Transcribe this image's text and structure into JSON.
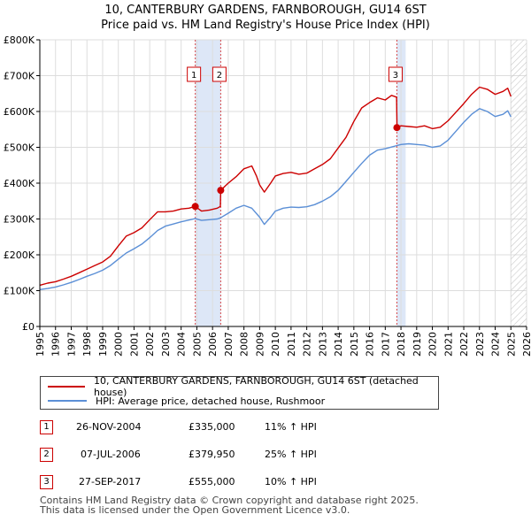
{
  "title_line1": "10, CANTERBURY GARDENS, FARNBOROUGH, GU14 6ST",
  "title_line2": "Price paid vs. HM Land Registry's House Price Index (HPI)",
  "colors": {
    "property": "#cc0000",
    "hpi": "#5b8fd6",
    "sale_shade": "#dde7f7",
    "grid": "#dddddd"
  },
  "chart_data": {
    "type": "line",
    "title": "10, CANTERBURY GARDENS, FARNBOROUGH, GU14 6ST — Price paid vs. HM Land Registry's House Price Index (HPI)",
    "xlim": [
      1995,
      2026
    ],
    "ylim": [
      0,
      800000
    ],
    "y_ticks": [
      0,
      100000,
      200000,
      300000,
      400000,
      500000,
      600000,
      700000,
      800000
    ],
    "y_tick_labels": [
      "£0",
      "£100K",
      "£200K",
      "£300K",
      "£400K",
      "£500K",
      "£600K",
      "£700K",
      "£800K"
    ],
    "x_ticks": [
      1995,
      1996,
      1997,
      1998,
      1999,
      2000,
      2001,
      2002,
      2003,
      2004,
      2005,
      2006,
      2007,
      2008,
      2009,
      2010,
      2011,
      2012,
      2013,
      2014,
      2015,
      2016,
      2017,
      2018,
      2019,
      2020,
      2021,
      2022,
      2023,
      2024,
      2025,
      2026
    ],
    "x_tick_labels": [
      "1995",
      "1996",
      "1997",
      "1998",
      "1999",
      "2000",
      "2001",
      "2002",
      "2003",
      "2004",
      "2005",
      "2006",
      "2007",
      "2008",
      "2009",
      "2010",
      "2011",
      "2012",
      "2013",
      "2014",
      "2015",
      "2016",
      "2017",
      "2018",
      "2019",
      "2020",
      "2021",
      "2022",
      "2023",
      "2024",
      "2025",
      "2026"
    ],
    "grid": true,
    "series": [
      {
        "name": "10, CANTERBURY GARDENS, FARNBOROUGH, GU14 6ST (detached house)",
        "x": [
          1995.0,
          1995.5,
          1996.0,
          1996.5,
          1997.0,
          1997.5,
          1998.0,
          1998.5,
          1999.0,
          1999.5,
          2000.0,
          2000.5,
          2001.0,
          2001.5,
          2002.0,
          2002.5,
          2003.0,
          2003.5,
          2004.0,
          2004.5,
          2004.9,
          2005.3,
          2005.8,
          2006.3,
          2006.5,
          2006.52,
          2007.0,
          2007.5,
          2008.0,
          2008.5,
          2008.8,
          2009.0,
          2009.3,
          2009.7,
          2010.0,
          2010.5,
          2011.0,
          2011.5,
          2012.0,
          2012.5,
          2013.0,
          2013.5,
          2014.0,
          2014.5,
          2015.0,
          2015.5,
          2016.0,
          2016.5,
          2017.0,
          2017.4,
          2017.72,
          2017.75,
          2018.0,
          2018.5,
          2019.0,
          2019.5,
          2020.0,
          2020.5,
          2021.0,
          2021.5,
          2022.0,
          2022.5,
          2023.0,
          2023.5,
          2024.0,
          2024.5,
          2024.8,
          2025.0
        ],
        "values": [
          115000,
          121000,
          125000,
          132000,
          140000,
          150000,
          160000,
          170000,
          180000,
          196000,
          225000,
          252000,
          262000,
          275000,
          298000,
          320000,
          320000,
          322000,
          328000,
          330000,
          335000,
          322000,
          325000,
          330000,
          335000,
          379950,
          400000,
          418000,
          440000,
          448000,
          420000,
          395000,
          375000,
          400000,
          420000,
          427000,
          430000,
          425000,
          428000,
          440000,
          452000,
          468000,
          498000,
          528000,
          572000,
          610000,
          625000,
          638000,
          632000,
          645000,
          640000,
          555000,
          560000,
          558000,
          556000,
          560000,
          552000,
          556000,
          574000,
          598000,
          622000,
          648000,
          668000,
          662000,
          648000,
          656000,
          665000,
          642000
        ]
      },
      {
        "name": "HPI: Average price, detached house, Rushmoor",
        "x": [
          1995.0,
          1995.5,
          1996.0,
          1996.5,
          1997.0,
          1997.5,
          1998.0,
          1998.5,
          1999.0,
          1999.5,
          2000.0,
          2000.5,
          2001.0,
          2001.5,
          2002.0,
          2002.5,
          2003.0,
          2003.5,
          2004.0,
          2004.5,
          2004.9,
          2005.3,
          2005.8,
          2006.3,
          2006.5,
          2007.0,
          2007.5,
          2008.0,
          2008.5,
          2009.0,
          2009.3,
          2009.7,
          2010.0,
          2010.5,
          2011.0,
          2011.5,
          2012.0,
          2012.5,
          2013.0,
          2013.5,
          2014.0,
          2014.5,
          2015.0,
          2015.5,
          2016.0,
          2016.5,
          2017.0,
          2017.5,
          2017.75,
          2018.0,
          2018.5,
          2019.0,
          2019.5,
          2020.0,
          2020.5,
          2021.0,
          2021.5,
          2022.0,
          2022.5,
          2023.0,
          2023.5,
          2024.0,
          2024.5,
          2024.8,
          2025.0
        ],
        "values": [
          103000,
          106000,
          110000,
          116000,
          123000,
          131000,
          140000,
          148000,
          157000,
          170000,
          188000,
          205000,
          217000,
          230000,
          248000,
          268000,
          280000,
          286000,
          292000,
          297000,
          301000,
          296000,
          298000,
          300000,
          303000,
          316000,
          330000,
          338000,
          330000,
          305000,
          285000,
          305000,
          322000,
          330000,
          333000,
          332000,
          334000,
          340000,
          350000,
          362000,
          380000,
          405000,
          430000,
          455000,
          478000,
          492000,
          496000,
          502000,
          505000,
          508000,
          510000,
          508000,
          506000,
          500000,
          504000,
          520000,
          545000,
          570000,
          592000,
          608000,
          600000,
          586000,
          592000,
          602000,
          585000
        ]
      }
    ],
    "sales": [
      {
        "marker": "1",
        "x": 2004.9,
        "value": 335000,
        "shade_to": 2006.52
      },
      {
        "marker": "2",
        "x": 2006.52,
        "value": 379950,
        "shade_to": null
      },
      {
        "marker": "3",
        "x": 2017.74,
        "value": 555000,
        "shade_to": 2018.3
      }
    ],
    "future_hatch_from": 2025.0
  },
  "legend": {
    "property_label": "10, CANTERBURY GARDENS, FARNBOROUGH, GU14 6ST (detached house)",
    "hpi_label": "HPI: Average price, detached house, Rushmoor"
  },
  "transactions": [
    {
      "marker": "1",
      "date": "26-NOV-2004",
      "price": "£335,000",
      "hpi": "11% ↑ HPI"
    },
    {
      "marker": "2",
      "date": "07-JUL-2006",
      "price": "£379,950",
      "hpi": "25% ↑ HPI"
    },
    {
      "marker": "3",
      "date": "27-SEP-2017",
      "price": "£555,000",
      "hpi": "10% ↑ HPI"
    }
  ],
  "footer_line1": "Contains HM Land Registry data © Crown copyright and database right 2025.",
  "footer_line2": "This data is licensed under the Open Government Licence v3.0."
}
